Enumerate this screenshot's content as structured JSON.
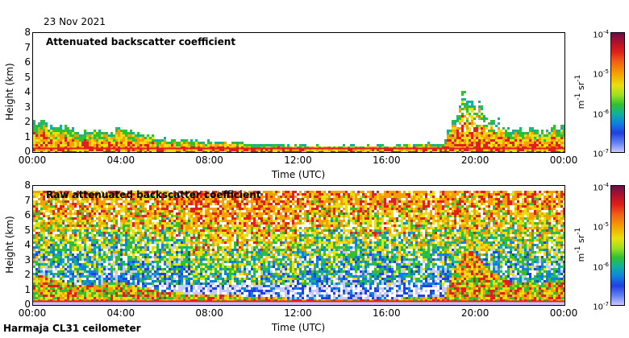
{
  "date_label": "23 Nov 2021",
  "footer_label": "Harmaja CL31 ceilometer",
  "colorbar": {
    "ticks": [
      {
        "base": "10",
        "exp": "-4"
      },
      {
        "base": "10",
        "exp": "-5"
      },
      {
        "base": "10",
        "exp": "-6"
      },
      {
        "base": "10",
        "exp": "-7"
      }
    ],
    "unit_m": "m",
    "unit_m_exp": "-1",
    "unit_sr": " sr",
    "unit_sr_exp": "-1",
    "colors": [
      "#6b0f4a",
      "#e0201a",
      "#f5a000",
      "#e8e010",
      "#30c030",
      "#10b0a0",
      "#1080e0",
      "#2040e0",
      "#c8c8ff"
    ]
  },
  "chart_data": [
    {
      "type": "heatmap",
      "title": "Attenuated backscatter coefficient",
      "xlabel": "Time (UTC)",
      "ylabel": "Height (km)",
      "x_ticks": [
        "00:00",
        "04:00",
        "08:00",
        "12:00",
        "16:00",
        "20:00",
        "00:00"
      ],
      "y_ticks": [
        "0",
        "1",
        "2",
        "3",
        "4",
        "5",
        "6",
        "7",
        "8"
      ],
      "xlim_hours": [
        0,
        24
      ],
      "ylim_km": [
        0,
        8
      ],
      "color_scale": "log",
      "clim": [
        "1e-7",
        "1e-4"
      ],
      "features": {
        "boundary_layer_top_km": [
          [
            0,
            2.2
          ],
          [
            2,
            1.4
          ],
          [
            4,
            1.6
          ],
          [
            6,
            0.9
          ],
          [
            8,
            0.8
          ],
          [
            12,
            0.5
          ],
          [
            16,
            0.5
          ],
          [
            18.5,
            0.7
          ],
          [
            19.5,
            4.2
          ],
          [
            20.5,
            2.5
          ],
          [
            21.5,
            1.6
          ],
          [
            23,
            1.5
          ],
          [
            24,
            1.8
          ]
        ]
      }
    },
    {
      "type": "heatmap",
      "title": "Raw attenuated backscatter coefficient",
      "xlabel": "Time (UTC)",
      "ylabel": "Height (km)",
      "x_ticks": [
        "00:00",
        "04:00",
        "08:00",
        "12:00",
        "16:00",
        "20:00",
        "00:00"
      ],
      "y_ticks": [
        "0",
        "1",
        "2",
        "3",
        "4",
        "5",
        "6",
        "7",
        "8"
      ],
      "xlim_hours": [
        0,
        24
      ],
      "ylim_km": [
        0,
        8
      ],
      "color_scale": "log",
      "clim": [
        "1e-7",
        "1e-4"
      ]
    }
  ]
}
